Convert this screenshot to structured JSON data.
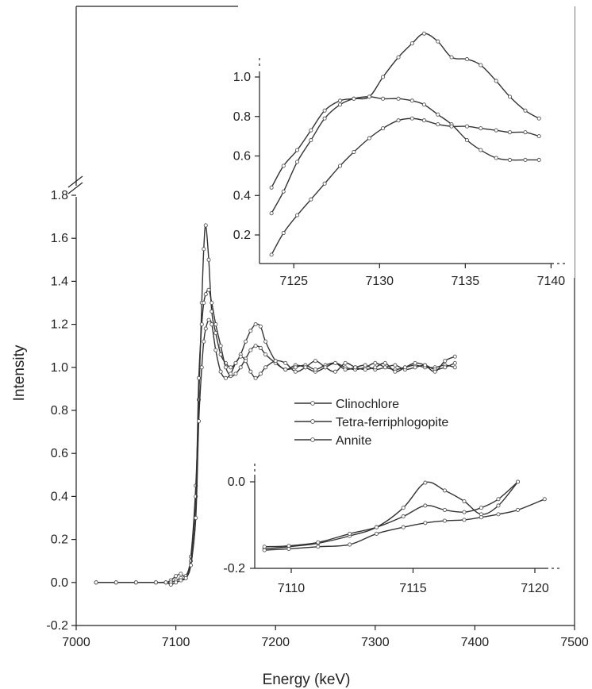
{
  "chart_data": [
    {
      "id": "main",
      "type": "line",
      "xlabel": "Energy (keV)",
      "ylabel": "Intensity",
      "xlim": [
        7000,
        7500
      ],
      "ylim": [
        -0.2,
        1.9
      ],
      "xticks": [
        7000,
        7100,
        7200,
        7300,
        7400,
        7500
      ],
      "xtick_labels": [
        "7000",
        "7100",
        "7200",
        "7300",
        "7400",
        "7500"
      ],
      "yticks": [
        -0.2,
        0.0,
        0.2,
        0.4,
        0.6,
        0.8,
        1.0,
        1.2,
        1.4,
        1.6,
        1.8
      ],
      "ytick_labels": [
        "-0.2",
        "0.0",
        "0.2",
        "0.4",
        "0.6",
        "0.8",
        "1.0",
        "1.2",
        "1.4",
        "1.6",
        "1.8"
      ],
      "axis_break": "y-top",
      "legend_position": "center-right",
      "series": [
        {
          "name": "Clinochlore",
          "x": [
            7020,
            7040,
            7060,
            7080,
            7090,
            7095,
            7100,
            7105,
            7110,
            7115,
            7120,
            7123,
            7126,
            7128,
            7130,
            7133,
            7136,
            7140,
            7145,
            7150,
            7155,
            7160,
            7165,
            7170,
            7175,
            7180,
            7185,
            7190,
            7200,
            7210,
            7220,
            7230,
            7240,
            7250,
            7260,
            7270,
            7280,
            7290,
            7300,
            7310,
            7320,
            7330,
            7340,
            7350,
            7360,
            7370,
            7380
          ],
          "y": [
            0.0,
            0.0,
            0.0,
            0.0,
            0.0,
            0.01,
            0.03,
            0.04,
            0.03,
            0.12,
            0.45,
            0.85,
            1.3,
            1.55,
            1.66,
            1.5,
            1.26,
            1.16,
            1.06,
            1.02,
            1.0,
            1.02,
            1.06,
            1.12,
            1.17,
            1.2,
            1.19,
            1.12,
            1.03,
            0.99,
            1.01,
            1.0,
            0.98,
            1.0,
            1.02,
            1.0,
            0.99,
            1.0,
            1.02,
            1.0,
            0.99,
            1.0,
            1.01,
            1.0,
            1.0,
            1.01,
            1.0
          ]
        },
        {
          "name": "Tetra-ferriphlogopite",
          "x": [
            7020,
            7040,
            7060,
            7080,
            7090,
            7095,
            7100,
            7105,
            7110,
            7115,
            7120,
            7123,
            7126,
            7128,
            7130,
            7133,
            7136,
            7140,
            7145,
            7150,
            7155,
            7160,
            7165,
            7170,
            7175,
            7180,
            7185,
            7190,
            7200,
            7210,
            7220,
            7230,
            7240,
            7250,
            7260,
            7270,
            7280,
            7290,
            7300,
            7310,
            7320,
            7330,
            7340,
            7350,
            7360,
            7370,
            7380
          ],
          "y": [
            0.0,
            0.0,
            0.0,
            0.0,
            0.0,
            0.0,
            0.01,
            0.02,
            0.02,
            0.1,
            0.4,
            0.95,
            1.2,
            1.3,
            1.34,
            1.36,
            1.3,
            1.2,
            1.1,
            1.0,
            0.96,
            0.97,
            1.0,
            1.04,
            1.08,
            1.1,
            1.09,
            1.06,
            1.02,
            0.99,
            1.0,
            1.01,
            0.99,
            1.01,
            1.02,
            0.99,
            1.0,
            1.01,
            0.99,
            1.0,
            1.01,
            0.99,
            1.0,
            1.01,
            0.99,
            1.0,
            1.02
          ]
        },
        {
          "name": "Annite",
          "x": [
            7020,
            7040,
            7060,
            7080,
            7090,
            7095,
            7100,
            7105,
            7110,
            7115,
            7120,
            7123,
            7126,
            7128,
            7130,
            7133,
            7136,
            7140,
            7145,
            7150,
            7155,
            7160,
            7165,
            7170,
            7175,
            7180,
            7185,
            7190,
            7200,
            7210,
            7220,
            7230,
            7240,
            7250,
            7260,
            7270,
            7280,
            7290,
            7300,
            7310,
            7320,
            7330,
            7340,
            7350,
            7360,
            7370,
            7380
          ],
          "y": [
            0.0,
            0.0,
            0.0,
            0.0,
            0.0,
            -0.01,
            0.0,
            0.01,
            0.02,
            0.08,
            0.3,
            0.75,
            1.0,
            1.12,
            1.18,
            1.22,
            1.2,
            1.08,
            0.98,
            0.95,
            0.97,
            1.02,
            1.05,
            1.03,
            0.98,
            0.95,
            0.97,
            1.0,
            1.03,
            1.02,
            0.98,
            1.0,
            1.03,
            1.0,
            0.98,
            1.02,
            1.0,
            0.99,
            1.0,
            1.02,
            0.98,
            1.0,
            1.02,
            1.01,
            0.98,
            1.03,
            1.05
          ]
        }
      ]
    },
    {
      "id": "inset-top",
      "type": "line",
      "xlim": [
        7123,
        7141
      ],
      "ylim": [
        0.05,
        1.2
      ],
      "xticks": [
        7125,
        7130,
        7135,
        7140
      ],
      "xtick_labels": [
        "7125",
        "7130",
        "7135",
        "7140"
      ],
      "yticks": [
        0.2,
        0.4,
        0.6,
        0.8,
        1.0
      ],
      "ytick_labels": [
        "0.2",
        "0.4",
        "0.6",
        "0.8",
        "1.0"
      ],
      "series": [
        {
          "name": "Clinochlore",
          "x": [
            7123.7,
            7124.4,
            7125.2,
            7126.0,
            7126.8,
            7127.7,
            7128.5,
            7129.4,
            7130.2,
            7131.1,
            7131.9,
            7132.6,
            7133.4,
            7134.2,
            7135.1,
            7135.9,
            7136.8,
            7137.6,
            7138.5,
            7139.3
          ],
          "y": [
            0.31,
            0.42,
            0.57,
            0.68,
            0.79,
            0.86,
            0.89,
            0.9,
            0.89,
            0.89,
            0.88,
            0.86,
            0.81,
            0.76,
            0.68,
            0.63,
            0.59,
            0.58,
            0.58,
            0.58
          ]
        },
        {
          "name": "Tetra-ferriphlogopite",
          "x": [
            7123.7,
            7124.4,
            7125.2,
            7126.0,
            7126.8,
            7127.7,
            7128.5,
            7129.4,
            7130.2,
            7131.1,
            7131.9,
            7132.6,
            7133.4,
            7134.2,
            7135.1,
            7135.9,
            7136.8,
            7137.6,
            7138.5,
            7139.3
          ],
          "y": [
            0.44,
            0.55,
            0.63,
            0.73,
            0.83,
            0.88,
            0.89,
            0.9,
            1.0,
            1.1,
            1.17,
            1.22,
            1.18,
            1.1,
            1.09,
            1.06,
            0.98,
            0.9,
            0.83,
            0.79
          ]
        },
        {
          "name": "Annite",
          "x": [
            7123.7,
            7124.4,
            7125.2,
            7126.0,
            7126.8,
            7127.7,
            7128.5,
            7129.4,
            7130.2,
            7131.1,
            7131.9,
            7132.6,
            7133.4,
            7134.2,
            7135.1,
            7135.9,
            7136.8,
            7137.6,
            7138.5,
            7139.3
          ],
          "y": [
            0.1,
            0.21,
            0.3,
            0.38,
            0.46,
            0.55,
            0.62,
            0.69,
            0.74,
            0.78,
            0.79,
            0.78,
            0.76,
            0.75,
            0.75,
            0.74,
            0.73,
            0.72,
            0.72,
            0.7
          ]
        }
      ]
    },
    {
      "id": "inset-bottom",
      "type": "line",
      "xlim": [
        7108.3,
        7121.5
      ],
      "ylim": [
        -0.2,
        0.03
      ],
      "xticks": [
        7110,
        7115,
        7120
      ],
      "xtick_labels": [
        "7110",
        "7115",
        "7120"
      ],
      "yticks": [
        -0.2,
        0.0
      ],
      "ytick_labels": [
        "-0.2",
        "0.0"
      ],
      "series": [
        {
          "name": "Clinochlore",
          "x": [
            7108.9,
            7109.9,
            7111.1,
            7112.4,
            7113.5,
            7114.6,
            7115.5,
            7116.3,
            7117.1,
            7117.8,
            7118.5,
            7119.3
          ],
          "y": [
            -0.155,
            -0.15,
            -0.142,
            -0.125,
            -0.105,
            -0.06,
            -0.002,
            -0.02,
            -0.045,
            -0.075,
            -0.055,
            0.0
          ]
        },
        {
          "name": "Tetra-ferriphlogopite",
          "x": [
            7108.9,
            7109.9,
            7111.1,
            7112.4,
            7113.5,
            7114.6,
            7115.5,
            7116.3,
            7117.1,
            7117.8,
            7118.5,
            7119.3
          ],
          "y": [
            -0.15,
            -0.148,
            -0.14,
            -0.12,
            -0.105,
            -0.08,
            -0.055,
            -0.065,
            -0.07,
            -0.06,
            -0.04,
            0.0
          ]
        },
        {
          "name": "Annite",
          "x": [
            7108.9,
            7109.9,
            7111.1,
            7112.4,
            7113.5,
            7114.6,
            7115.5,
            7116.3,
            7117.1,
            7117.8,
            7118.5,
            7119.3,
            7120.4
          ],
          "y": [
            -0.158,
            -0.155,
            -0.15,
            -0.145,
            -0.12,
            -0.105,
            -0.095,
            -0.09,
            -0.088,
            -0.082,
            -0.075,
            -0.065,
            -0.04
          ]
        }
      ]
    }
  ]
}
